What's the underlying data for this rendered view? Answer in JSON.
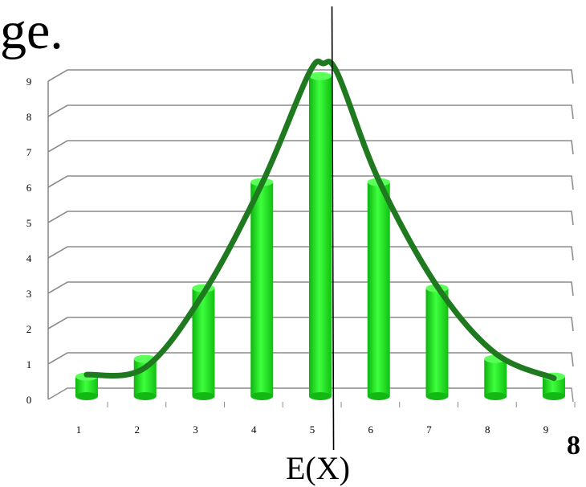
{
  "title_fragment": "ge.",
  "page_number": "8",
  "marker_label": "E(X)",
  "colors": {
    "bar": "#22ee22",
    "curve": "#1f7a1f",
    "grid": "#8c8c8c",
    "marker": "#000000"
  },
  "chart_data": {
    "type": "bar",
    "categories": [
      "1",
      "2",
      "3",
      "4",
      "5",
      "6",
      "7",
      "8",
      "9"
    ],
    "values": [
      0.6,
      1.1,
      3.1,
      6.1,
      9.1,
      6.1,
      3.1,
      1.1,
      0.6
    ],
    "y_ticks": [
      "0",
      "1",
      "2",
      "3",
      "4",
      "5",
      "6",
      "7",
      "8",
      "9"
    ],
    "ylim": [
      0,
      9
    ],
    "grid": true,
    "style": "3d-cylinder",
    "overlay": {
      "type": "smooth-curve",
      "description_source": "fitted bell-shaped line over bars",
      "points": [
        [
          1,
          0.7
        ],
        [
          2,
          0.9
        ],
        [
          3,
          3.0
        ],
        [
          4,
          6.1
        ],
        [
          4.8,
          9.2
        ],
        [
          5.05,
          9.5
        ],
        [
          5.3,
          9.2
        ],
        [
          6,
          6.2
        ],
        [
          7,
          3.2
        ],
        [
          8,
          1.3
        ],
        [
          9,
          0.6
        ]
      ]
    },
    "vertical_marker": {
      "x": 5.2,
      "label": "E(X)"
    }
  }
}
